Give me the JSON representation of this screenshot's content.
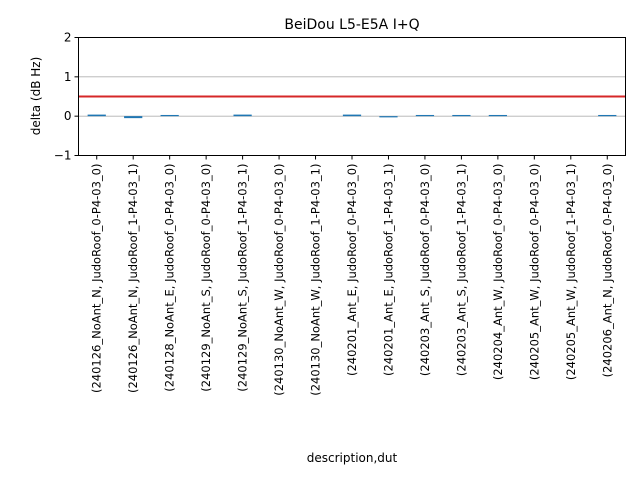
{
  "chart_data": {
    "type": "bar",
    "title": "BeiDou L5-E5A I+Q",
    "xlabel": "description,dut",
    "ylabel": "delta (dB Hz)",
    "ylim": [
      -1,
      2
    ],
    "yticks": [
      -1,
      0,
      1,
      2
    ],
    "grid": "y",
    "categories": [
      "(240126_NoAnt_N, JudoRoof_0-P4-03_0)",
      "(240126_NoAnt_N, JudoRoof_1-P4-03_1)",
      "(240128_NoAnt_E, JudoRoof_0-P4-03_0)",
      "(240129_NoAnt_S, JudoRoof_0-P4-03_0)",
      "(240129_NoAnt_S, JudoRoof_1-P4-03_1)",
      "(240130_NoAnt_W, JudoRoof_0-P4-03_0)",
      "(240130_NoAnt_W, JudoRoof_1-P4-03_1)",
      "(240201_Ant_E, JudoRoof_0-P4-03_0)",
      "(240201_Ant_E, JudoRoof_1-P4-03_1)",
      "(240203_Ant_S, JudoRoof_0-P4-03_0)",
      "(240203_Ant_S, JudoRoof_1-P4-03_1)",
      "(240204_Ant_W, JudoRoof_0-P4-03_0)",
      "(240205_Ant_W, JudoRoof_0-P4-03_0)",
      "(240205_Ant_W, JudoRoof_1-P4-03_1)",
      "(240206_Ant_N, JudoRoof_0-P4-03_0)"
    ],
    "values": [
      0.04,
      -0.05,
      0.02,
      null,
      0.04,
      null,
      null,
      0.04,
      -0.02,
      0.02,
      0.02,
      0.02,
      null,
      null,
      0.02
    ],
    "threshold": 0.5,
    "colors": {
      "bar": "#1f77b4",
      "threshold": "#d62728",
      "grid": "#b0b0b0"
    }
  }
}
